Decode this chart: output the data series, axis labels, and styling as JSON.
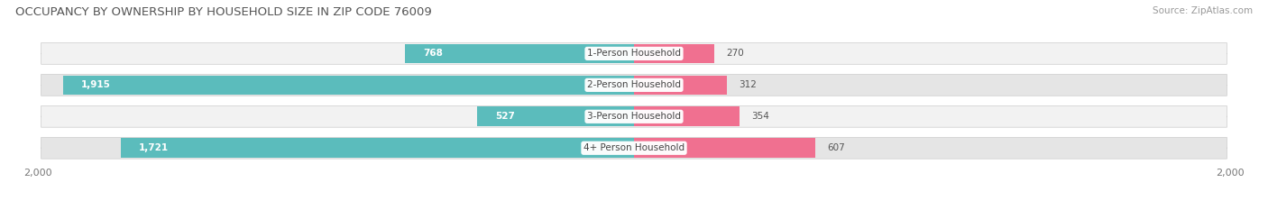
{
  "title": "OCCUPANCY BY OWNERSHIP BY HOUSEHOLD SIZE IN ZIP CODE 76009",
  "source": "Source: ZipAtlas.com",
  "categories": [
    "1-Person Household",
    "2-Person Household",
    "3-Person Household",
    "4+ Person Household"
  ],
  "owner_values": [
    768,
    1915,
    527,
    1721
  ],
  "renter_values": [
    270,
    312,
    354,
    607
  ],
  "owner_color": "#5bbcbc",
  "renter_color": "#f07090",
  "x_max": 2000,
  "title_fontsize": 9.5,
  "label_fontsize": 7.5,
  "tick_fontsize": 8,
  "source_fontsize": 7.5,
  "background_color": "#ffffff",
  "row_bg_light": "#f2f2f2",
  "row_bg_dark": "#e5e5e5",
  "value_color_inside": "#ffffff",
  "value_color_outside": "#555555"
}
